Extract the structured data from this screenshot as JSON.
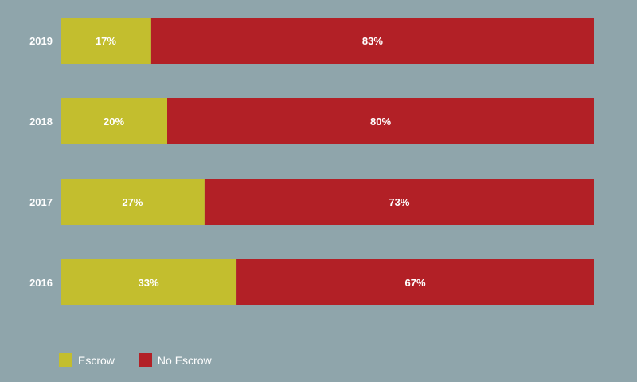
{
  "chart_data": {
    "type": "bar",
    "orientation": "horizontal",
    "stacked": true,
    "categories": [
      "2019",
      "2018",
      "2017",
      "2016"
    ],
    "series": [
      {
        "name": "Escrow",
        "color": "#c3be2e",
        "values": [
          17,
          20,
          27,
          33
        ],
        "labels": [
          "17%",
          "20%",
          "27%",
          "33%"
        ]
      },
      {
        "name": "No Escrow",
        "color": "#b22026",
        "values": [
          83,
          80,
          73,
          67
        ],
        "labels": [
          "83%",
          "80%",
          "73%",
          "67%"
        ]
      }
    ],
    "xlim": [
      0,
      100
    ],
    "grid": false,
    "legend_position": "bottom-left"
  }
}
